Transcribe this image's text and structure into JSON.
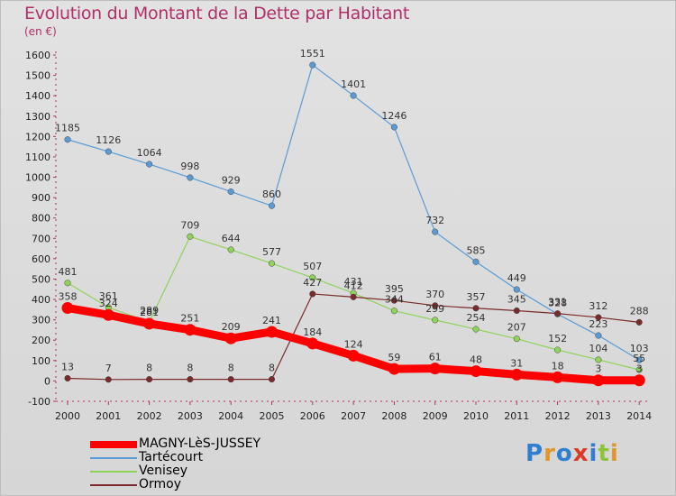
{
  "title": "Evolution du Montant de la Dette par Habitant",
  "unit": "(en €)",
  "logo": "Proxiti",
  "chart_data": {
    "type": "line",
    "x": [
      "2000",
      "2001",
      "2002",
      "2003",
      "2004",
      "2005",
      "2006",
      "2007",
      "2008",
      "2009",
      "2010",
      "2011",
      "2012",
      "2013",
      "2014"
    ],
    "ylim": [
      -100,
      1600
    ],
    "yticks": [
      -100,
      0,
      100,
      200,
      300,
      400,
      500,
      600,
      700,
      800,
      900,
      1000,
      1100,
      1200,
      1300,
      1400,
      1500,
      1600
    ],
    "grid": false,
    "legend_position": "bottom-left",
    "series": [
      {
        "name": "MAGNY-LèS-JUSSEY",
        "color": "#ff0000",
        "values": [
          358,
          324,
          281,
          251,
          209,
          241,
          184,
          124,
          59,
          61,
          48,
          31,
          18,
          3,
          3
        ]
      },
      {
        "name": "Tartécourt",
        "color": "#5a9bd5",
        "values": [
          1185,
          1126,
          1064,
          998,
          929,
          860,
          1551,
          1401,
          1246,
          732,
          585,
          449,
          328,
          223,
          103
        ]
      },
      {
        "name": "Venisey",
        "color": "#8fd35a",
        "values": [
          481,
          361,
          289,
          709,
          644,
          577,
          507,
          431,
          344,
          299,
          254,
          207,
          152,
          104,
          55
        ]
      },
      {
        "name": "Ormoy",
        "color": "#7a2a2a",
        "values": [
          13,
          7,
          8,
          8,
          8,
          8,
          427,
          412,
          395,
          370,
          357,
          345,
          331,
          312,
          288
        ]
      }
    ]
  }
}
